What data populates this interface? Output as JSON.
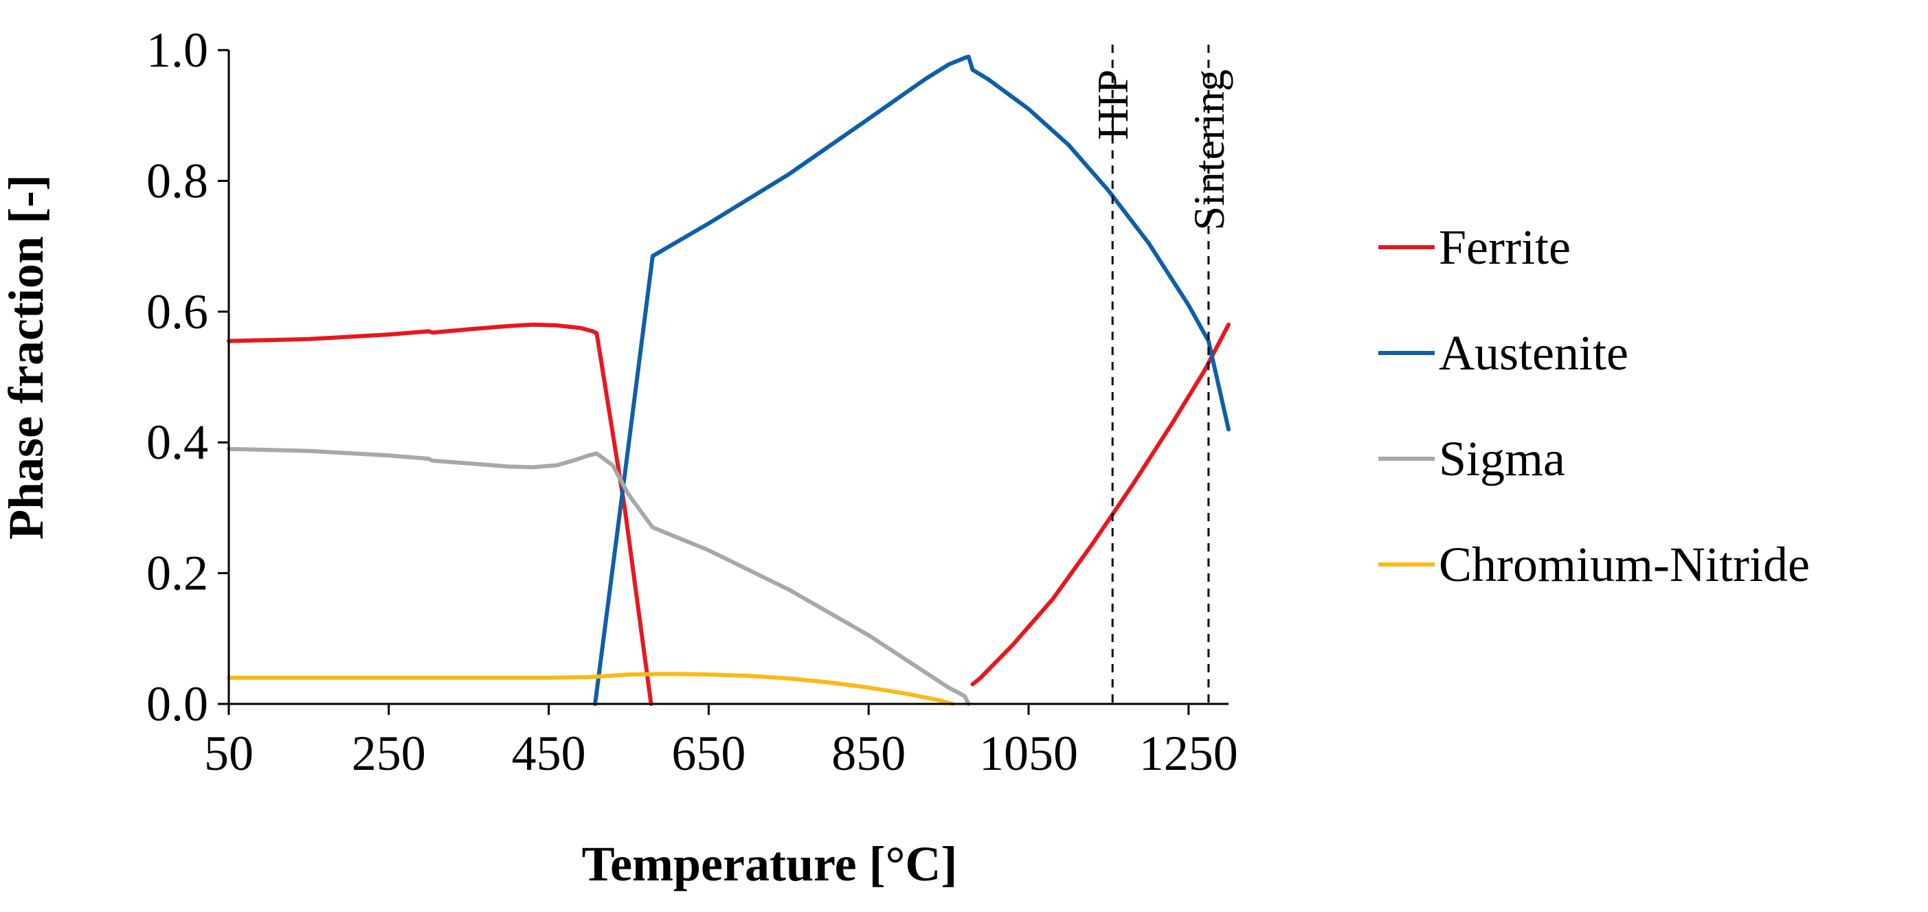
{
  "chart_data": {
    "type": "line",
    "title": "",
    "xlabel": "Temperature [°C]",
    "ylabel": "Phase fraction [-]",
    "xlim": [
      50,
      1300
    ],
    "ylim": [
      0,
      1.0
    ],
    "xticks": [
      50,
      250,
      450,
      650,
      850,
      1050,
      1250
    ],
    "xtick_labels": [
      "50",
      "250",
      "450",
      "650",
      "850",
      "1050",
      "1250"
    ],
    "yticks": [
      0,
      0.2,
      0.4,
      0.6,
      0.8,
      1.0
    ],
    "ytick_labels": [
      "0.0",
      "0.2",
      "0.4",
      "0.6",
      "0.8",
      "1.0"
    ],
    "grid": false,
    "legend_position": "right",
    "series": [
      {
        "name": "Ferrite",
        "color": "#e8171d",
        "points": [
          [
            50,
            0.555
          ],
          [
            150,
            0.558
          ],
          [
            250,
            0.565
          ],
          [
            300,
            0.57
          ],
          [
            305,
            0.568
          ],
          [
            350,
            0.573
          ],
          [
            400,
            0.578
          ],
          [
            430,
            0.58
          ],
          [
            460,
            0.579
          ],
          [
            490,
            0.575
          ],
          [
            505,
            0.57
          ],
          [
            510,
            0.567
          ],
          [
            545,
            0.3
          ],
          [
            578,
            0.0
          ],
          null,
          [
            980,
            0.03
          ],
          [
            990,
            0.04
          ],
          [
            1030,
            0.09
          ],
          [
            1080,
            0.16
          ],
          [
            1130,
            0.245
          ],
          [
            1180,
            0.335
          ],
          [
            1230,
            0.43
          ],
          [
            1270,
            0.51
          ],
          [
            1300,
            0.58
          ]
        ]
      },
      {
        "name": "Austenite",
        "color": "#0f5fa8",
        "points": [
          [
            508,
            0.0
          ],
          [
            545,
            0.35
          ],
          [
            580,
            0.685
          ],
          [
            650,
            0.735
          ],
          [
            750,
            0.81
          ],
          [
            850,
            0.895
          ],
          [
            920,
            0.955
          ],
          [
            950,
            0.978
          ],
          [
            970,
            0.988
          ],
          [
            975,
            0.99
          ],
          [
            980,
            0.97
          ],
          [
            1000,
            0.955
          ],
          [
            1050,
            0.91
          ],
          [
            1100,
            0.855
          ],
          [
            1150,
            0.785
          ],
          [
            1200,
            0.705
          ],
          [
            1250,
            0.61
          ],
          [
            1275,
            0.555
          ],
          [
            1300,
            0.42
          ]
        ]
      },
      {
        "name": "Sigma",
        "color": "#a8a8a8",
        "points": [
          [
            50,
            0.39
          ],
          [
            150,
            0.387
          ],
          [
            250,
            0.38
          ],
          [
            300,
            0.375
          ],
          [
            305,
            0.372
          ],
          [
            350,
            0.368
          ],
          [
            400,
            0.363
          ],
          [
            430,
            0.362
          ],
          [
            460,
            0.365
          ],
          [
            480,
            0.372
          ],
          [
            500,
            0.38
          ],
          [
            510,
            0.383
          ],
          [
            530,
            0.365
          ],
          [
            550,
            0.32
          ],
          [
            580,
            0.27
          ],
          [
            650,
            0.235
          ],
          [
            750,
            0.175
          ],
          [
            850,
            0.105
          ],
          [
            900,
            0.065
          ],
          [
            950,
            0.025
          ],
          [
            970,
            0.012
          ],
          [
            975,
            0.0
          ]
        ]
      },
      {
        "name": "Chromium-Nitride",
        "color": "#fbb915",
        "points": [
          [
            50,
            0.04
          ],
          [
            150,
            0.04
          ],
          [
            250,
            0.04
          ],
          [
            350,
            0.04
          ],
          [
            450,
            0.04
          ],
          [
            500,
            0.041
          ],
          [
            550,
            0.045
          ],
          [
            600,
            0.046
          ],
          [
            650,
            0.045
          ],
          [
            700,
            0.043
          ],
          [
            750,
            0.039
          ],
          [
            800,
            0.033
          ],
          [
            850,
            0.025
          ],
          [
            900,
            0.015
          ],
          [
            940,
            0.005
          ],
          [
            955,
            0.0
          ]
        ]
      }
    ],
    "vertical_lines": [
      {
        "label": "HIP",
        "x": 1155
      },
      {
        "label": "Sintering",
        "x": 1275
      }
    ]
  }
}
